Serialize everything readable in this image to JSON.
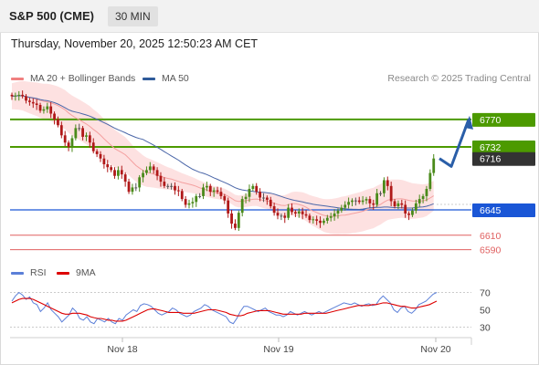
{
  "header": {
    "symbol": "S&P 500 (CME)",
    "timeframe": "30 MIN"
  },
  "timestamp": "Thursday, November 20, 2025 12:50:23 AM CET",
  "credit": "Research © 2025 Trading Central",
  "legend": {
    "main": [
      {
        "label": "MA 20 + Bollinger Bands",
        "color": "#f08080"
      },
      {
        "label": "MA 50",
        "color": "#2f5b9a"
      }
    ],
    "rsi": [
      {
        "label": "RSI",
        "color": "#5b7fd8"
      },
      {
        "label": "9MA",
        "color": "#dd0000"
      }
    ]
  },
  "colors": {
    "up_candle": "#4a8a1a",
    "down_candle": "#b01818",
    "neutral_candle": "#555555",
    "resistance": "#4c9a00",
    "support": "#1a56d6",
    "target_low": "#e06060",
    "bollinger_fill": "#fde1e1",
    "ma20": "#f4a0a0",
    "ma50": "#4a66a8",
    "arrow": "#2a5ea8",
    "current_price_bg": "#333333"
  },
  "chart_data": [
    {
      "type": "candlestick",
      "title": "S&P 500 (CME)",
      "ylim": [
        6575,
        6790
      ],
      "x_tick_labels": [
        "Nov 18",
        "Nov 19",
        "Nov 20"
      ],
      "price_levels": [
        {
          "value": 6770,
          "label": "6770",
          "kind": "resistance"
        },
        {
          "value": 6732,
          "label": "6732",
          "kind": "resistance"
        },
        {
          "value": 6716,
          "label": "6716",
          "kind": "current"
        },
        {
          "value": 6645,
          "label": "6645",
          "kind": "pivot"
        },
        {
          "value": 6610,
          "label": "6610",
          "kind": "support"
        },
        {
          "value": 6590,
          "label": "6590",
          "kind": "support"
        }
      ],
      "close": [
        6802,
        6803,
        6804,
        6802,
        6796,
        6794,
        6792,
        6790,
        6782,
        6784,
        6788,
        6778,
        6770,
        6762,
        6748,
        6738,
        6732,
        6744,
        6758,
        6758,
        6746,
        6748,
        6738,
        6726,
        6722,
        6716,
        6708,
        6704,
        6700,
        6692,
        6700,
        6694,
        6684,
        6670,
        6676,
        6676,
        6690,
        6696,
        6700,
        6705,
        6700,
        6692,
        6684,
        6678,
        6678,
        6678,
        6672,
        6671,
        6660,
        6652,
        6654,
        6656,
        6664,
        6664,
        6676,
        6678,
        6670,
        6672,
        6670,
        6664,
        6658,
        6640,
        6626,
        6620,
        6641,
        6660,
        6663,
        6674,
        6678,
        6670,
        6662,
        6662,
        6659,
        6650,
        6641,
        6637,
        6637,
        6634,
        6648,
        6642,
        6640,
        6643,
        6639,
        6637,
        6631,
        6632,
        6630,
        6627,
        6630,
        6634,
        6636,
        6640,
        6644,
        6648,
        6652,
        6656,
        6658,
        6658,
        6656,
        6658,
        6660,
        6654,
        6652,
        6668,
        6668,
        6686,
        6678,
        6657,
        6650,
        6654,
        6652,
        6640,
        6638,
        6644,
        6654,
        6660,
        6664,
        6674,
        6696,
        6716
      ],
      "indicators": {
        "ma20_start": 6796,
        "ma20_end": 6664,
        "ma50_start": 6812,
        "ma50_end": 6648,
        "bollinger_band_width": "approximately ±15 to ±30 around MA 20"
      },
      "forecast": {
        "path": [
          6716,
          6705,
          6770
        ],
        "target": 6770
      }
    },
    {
      "type": "line",
      "title": "RSI",
      "ylim": [
        20,
        80
      ],
      "y_ticks": [
        30,
        50,
        70
      ],
      "series": [
        {
          "name": "RSI",
          "values": [
            60,
            66,
            70,
            67,
            62,
            65,
            58,
            56,
            48,
            52,
            58,
            50,
            46,
            42,
            36,
            40,
            44,
            52,
            48,
            40,
            38,
            42,
            36,
            34,
            40,
            38,
            36,
            40,
            36,
            34,
            40,
            38,
            44,
            47,
            50,
            48,
            55,
            57,
            56,
            54,
            50,
            46,
            44,
            46,
            48,
            52,
            50,
            46,
            44,
            42,
            44,
            48,
            50,
            52,
            56,
            54,
            50,
            48,
            46,
            44,
            42,
            36,
            34,
            40,
            48,
            54,
            54,
            52,
            50,
            48,
            50,
            52,
            48,
            46,
            44,
            44,
            42,
            44,
            48,
            46,
            44,
            46,
            48,
            46,
            44,
            46,
            48,
            46,
            48,
            50,
            52,
            54,
            56,
            58,
            57,
            56,
            58,
            56,
            54,
            56,
            57,
            55,
            56,
            62,
            66,
            62,
            58,
            50,
            47,
            52,
            54,
            48,
            46,
            50,
            56,
            58,
            60,
            64,
            68,
            70
          ]
        },
        {
          "name": "9MA",
          "values": [
            58,
            60,
            62,
            63,
            63,
            63,
            62,
            60,
            58,
            56,
            54,
            52,
            50,
            48,
            46,
            45,
            45,
            46,
            46,
            46,
            45,
            44,
            42,
            41,
            40,
            40,
            39,
            38,
            38,
            37,
            37,
            37,
            38,
            40,
            42,
            44,
            46,
            48,
            50,
            51,
            51,
            50,
            49,
            48,
            47,
            47,
            47,
            47,
            46,
            46,
            46,
            46,
            47,
            48,
            49,
            50,
            50,
            50,
            49,
            48,
            47,
            45,
            44,
            43,
            43,
            44,
            46,
            47,
            48,
            49,
            49,
            49,
            49,
            48,
            47,
            46,
            45,
            45,
            45,
            45,
            45,
            45,
            46,
            46,
            46,
            46,
            46,
            46,
            46,
            47,
            48,
            49,
            50,
            51,
            52,
            53,
            54,
            55,
            55,
            55,
            55,
            56,
            56,
            57,
            58,
            58,
            57,
            56,
            55,
            54,
            54,
            53,
            52,
            52,
            53,
            54,
            55,
            56,
            58,
            60
          ]
        }
      ]
    }
  ]
}
